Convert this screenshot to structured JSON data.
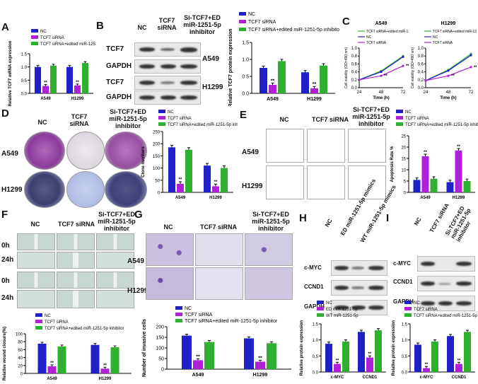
{
  "panels": {
    "A": "A",
    "B": "B",
    "C": "C",
    "D": "D",
    "E": "E",
    "F": "F",
    "G": "G",
    "H": "H",
    "I": "I"
  },
  "colors": {
    "nc": "#2020c8",
    "sirna": "#b020d8",
    "edited": "#30b030",
    "wt": "#30b030"
  },
  "legend3": {
    "nc": "NC",
    "sirna": "TCF7 siRNA",
    "edited": "TCF7 siRNA+edited miR-1251-5p inhibitor"
  },
  "legend3_short": {
    "edited_line1": "TCF7 siRNA+edited",
    "edited_line2": "miR-1251-5p inhibitor"
  },
  "groups": {
    "nc": "NC",
    "sirna_line1": "TCF7",
    "sirna_line2": "siRNA",
    "si_ed_line1": "Si-TCF7+ED",
    "si_ed_line2": "miR-1251-5p",
    "si_ed_line3": "inhibitor",
    "tcf7_sirna": "TCF7 siRNA"
  },
  "cells": {
    "a549": "A549",
    "h1299": "H1299"
  },
  "blot_b": {
    "tcf7": "TCF7",
    "gapdh": "GAPDH"
  },
  "blot_h": {
    "nc": "NC",
    "ed": "ED miR-1251-5p mimics",
    "wt": "WT miR-1251-5p mimics",
    "cmyc": "c-MYC",
    "ccnd1": "CCND1",
    "gapdh": "GAPDH"
  },
  "blot_i": {
    "nc": "NC",
    "sirna": "TCF7 siRNA",
    "edited_line1": "Si-TCF7+ED",
    "edited_line2": "miR-1251-5p",
    "edited_line3": "inhibitor",
    "cmyc": "c-MYC",
    "ccnd1": "CCND1",
    "gapdh": "GAPDH"
  },
  "legend_h": {
    "nc": "NC",
    "ed": "ED miR-1251-5p",
    "wt": "WT miR-1251-5p"
  },
  "timepoints": {
    "t0": "0h",
    "t24": "24h"
  },
  "chart_data": [
    {
      "id": "A",
      "type": "bar",
      "ylabel": "Relative TCF7 mRNA expression",
      "categories": [
        "A549",
        "H1299"
      ],
      "ylim": [
        0,
        1.5
      ],
      "yticks": [
        "0.0",
        "0.5",
        "1.0",
        "1.5"
      ],
      "series": [
        {
          "name": "NC",
          "values": [
            1.0,
            1.0
          ]
        },
        {
          "name": "TCF7 siRNA",
          "values": [
            0.28,
            0.3
          ]
        },
        {
          "name": "TCF7 siRNA+edited miR-1251-5p inhibitor",
          "values": [
            1.05,
            1.15
          ]
        }
      ],
      "annotations": [
        "**",
        "**"
      ]
    },
    {
      "id": "B",
      "type": "bar",
      "ylabel": "Relative TCF7 protein expression",
      "categories": [
        "A549",
        "H1299"
      ],
      "ylim": [
        0,
        1.5
      ],
      "yticks": [
        "0.0",
        "0.5",
        "1.0",
        "1.5"
      ],
      "series": [
        {
          "name": "NC",
          "values": [
            0.75,
            0.62
          ]
        },
        {
          "name": "TCF7 siRNA",
          "values": [
            0.25,
            0.15
          ]
        },
        {
          "name": "TCF7 siRNA+edited miR-1251-5p inhibitor",
          "values": [
            0.95,
            0.82
          ]
        }
      ],
      "annotations": [
        "**",
        "**"
      ]
    },
    {
      "id": "C1",
      "type": "line",
      "title": "A549",
      "xlabel": "Time (h)",
      "ylabel": "Cell viability (OD=490 nm)",
      "x": [
        24,
        48,
        72
      ],
      "ylim": [
        0,
        1.0
      ],
      "yticks": [
        "0.0",
        "0.2",
        "0.4",
        "0.6",
        "0.8",
        "1.0"
      ],
      "series": [
        {
          "name": "TCF7 siRNA+edited miR-1251-5p inhibitor",
          "values": [
            0.2,
            0.42,
            0.8
          ]
        },
        {
          "name": "NC",
          "values": [
            0.2,
            0.4,
            0.78
          ]
        },
        {
          "name": "TCF7 siRNA",
          "values": [
            0.2,
            0.3,
            0.55
          ]
        }
      ],
      "annotations": [
        "**",
        "**"
      ]
    },
    {
      "id": "C2",
      "type": "line",
      "title": "H1299",
      "xlabel": "Time (h)",
      "ylabel": "Cell viability (OD=490 nm)",
      "x": [
        24,
        48,
        72
      ],
      "ylim": [
        0,
        1.0
      ],
      "yticks": [
        "0.0",
        "0.2",
        "0.4",
        "0.6",
        "0.8",
        "1.0"
      ],
      "series": [
        {
          "name": "TCF7 siRNA+edited miR-1251-5p inhibitor",
          "values": [
            0.18,
            0.45,
            0.85
          ]
        },
        {
          "name": "NC",
          "values": [
            0.18,
            0.43,
            0.82
          ]
        },
        {
          "name": "TCF7 siRNA",
          "values": [
            0.18,
            0.3,
            0.52
          ]
        }
      ],
      "annotations": [
        "**",
        "**"
      ]
    },
    {
      "id": "D",
      "type": "bar",
      "ylabel": "Clone numbers",
      "categories": [
        "A549",
        "H1299"
      ],
      "ylim": [
        0,
        250
      ],
      "yticks": [
        "0",
        "50",
        "100",
        "150",
        "200",
        "250"
      ],
      "series": [
        {
          "name": "NC",
          "values": [
            185,
            110
          ]
        },
        {
          "name": "TCF7 siRNA",
          "values": [
            35,
            25
          ]
        },
        {
          "name": "TCF7 siRNA+edited miR-1251-5p inhibitor",
          "values": [
            175,
            100
          ]
        }
      ],
      "annotations": [
        "**",
        "**"
      ]
    },
    {
      "id": "E",
      "type": "bar",
      "ylabel": "Apoptosis Rate %",
      "categories": [
        "A549",
        "H1299"
      ],
      "ylim": [
        0,
        25
      ],
      "yticks": [
        "0",
        "5",
        "10",
        "15",
        "20",
        "25"
      ],
      "series": [
        {
          "name": "NC",
          "values": [
            5.5,
            4.5
          ]
        },
        {
          "name": "TCF7 siRNA",
          "values": [
            16,
            18.5
          ]
        },
        {
          "name": "TCF7 siRNA+edited miR-1251-5p inhibitor",
          "values": [
            6,
            5
          ]
        }
      ],
      "annotations": [
        "**",
        "**"
      ]
    },
    {
      "id": "F",
      "type": "bar",
      "ylabel": "Relative wound closure(%)",
      "categories": [
        "A549",
        "H1299"
      ],
      "ylim": [
        0,
        100
      ],
      "yticks": [
        "0",
        "20",
        "40",
        "60",
        "80",
        "100"
      ],
      "series": [
        {
          "name": "NC",
          "values": [
            75,
            72
          ]
        },
        {
          "name": "TCF7 siRNA",
          "values": [
            18,
            12
          ]
        },
        {
          "name": "TCF7 siRNA+edited miR-1251-5p inhibitor",
          "values": [
            68,
            66
          ]
        }
      ],
      "annotations": [
        "**",
        "**"
      ]
    },
    {
      "id": "G",
      "type": "bar",
      "ylabel": "Number of invasive cells",
      "categories": [
        "A549",
        "H1299"
      ],
      "ylim": [
        0,
        200
      ],
      "yticks": [
        "0",
        "50",
        "100",
        "150",
        "200"
      ],
      "series": [
        {
          "name": "NC",
          "values": [
            158,
            145
          ]
        },
        {
          "name": "TCF7 siRNA",
          "values": [
            42,
            35
          ]
        },
        {
          "name": "TCF7 siRNA+edited miR-1251-5p inhibitor",
          "values": [
            128,
            122
          ]
        }
      ],
      "annotations": [
        "**",
        "**"
      ]
    },
    {
      "id": "H",
      "type": "bar",
      "ylabel": "Relative protein expression",
      "categories": [
        "c-MYC",
        "CCND1"
      ],
      "ylim": [
        0,
        1.5
      ],
      "yticks": [
        "0.0",
        "0.5",
        "1.0",
        "1.5"
      ],
      "series": [
        {
          "name": "NC",
          "values": [
            0.88,
            1.25
          ]
        },
        {
          "name": "ED miR-1251-5p",
          "values": [
            0.25,
            0.45
          ]
        },
        {
          "name": "WT miR-1251-5p",
          "values": [
            0.95,
            1.3
          ]
        }
      ],
      "annotations": [
        "**",
        "**"
      ]
    },
    {
      "id": "I",
      "type": "bar",
      "ylabel": "Relative protein expression",
      "categories": [
        "c-MYC",
        "CCND1"
      ],
      "ylim": [
        0,
        1.5
      ],
      "yticks": [
        "0.0",
        "0.5",
        "1.0",
        "1.5"
      ],
      "series": [
        {
          "name": "NC",
          "values": [
            0.85,
            1.12
          ]
        },
        {
          "name": "TCF7 siRNA",
          "values": [
            0.12,
            0.25
          ]
        },
        {
          "name": "TCF7 siRNA+edited miR-1251-5p inhibitor",
          "values": [
            0.95,
            1.25
          ]
        }
      ],
      "annotations": [
        "**",
        "**"
      ]
    }
  ]
}
